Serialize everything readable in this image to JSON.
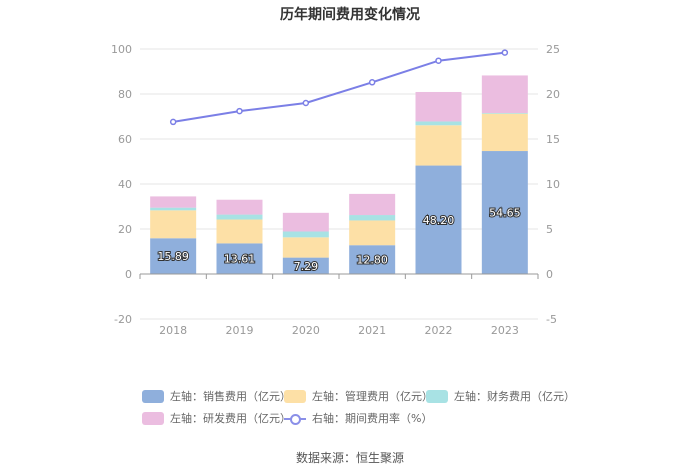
{
  "chart_data": {
    "type": "bar",
    "title": "历年期间费用变化情况",
    "categories": [
      "2018",
      "2019",
      "2020",
      "2021",
      "2022",
      "2023"
    ],
    "stacked": true,
    "left_axis": {
      "min": -20,
      "max": 100,
      "ticks": [
        -20,
        0,
        20,
        40,
        60,
        80,
        100
      ]
    },
    "right_axis": {
      "min": -5,
      "max": 25,
      "ticks": [
        -5,
        0,
        5,
        10,
        15,
        20,
        25
      ]
    },
    "series": [
      {
        "name": "左轴：销售费用（亿元）",
        "axis": "left",
        "type": "bar",
        "color": "#8fafdc",
        "values": [
          15.89,
          13.61,
          7.29,
          12.8,
          48.2,
          54.65
        ],
        "labels": [
          "15.89",
          "13.61",
          "7.29",
          "12.80",
          "48.20",
          "54.65"
        ]
      },
      {
        "name": "左轴：管理费用（亿元）",
        "axis": "left",
        "type": "bar",
        "color": "#fde0a6",
        "values": [
          12.4,
          10.6,
          9.0,
          11.0,
          17.9,
          16.6
        ]
      },
      {
        "name": "左轴：财务费用（亿元）",
        "axis": "left",
        "type": "bar",
        "color": "#a8e2e4",
        "values": [
          1.2,
          2.2,
          2.6,
          2.4,
          1.7,
          0.3
        ]
      },
      {
        "name": "左轴：研发费用（亿元）",
        "axis": "left",
        "type": "bar",
        "color": "#ebbde0",
        "values": [
          5.0,
          6.6,
          8.3,
          9.4,
          13.1,
          16.7
        ]
      },
      {
        "name": "右轴：期间费用率（%）",
        "axis": "right",
        "type": "line",
        "color": "#7b7fe6",
        "values": [
          16.9,
          18.1,
          19.0,
          21.3,
          23.7,
          24.6
        ]
      }
    ]
  },
  "source": "数据来源：恒生聚源"
}
